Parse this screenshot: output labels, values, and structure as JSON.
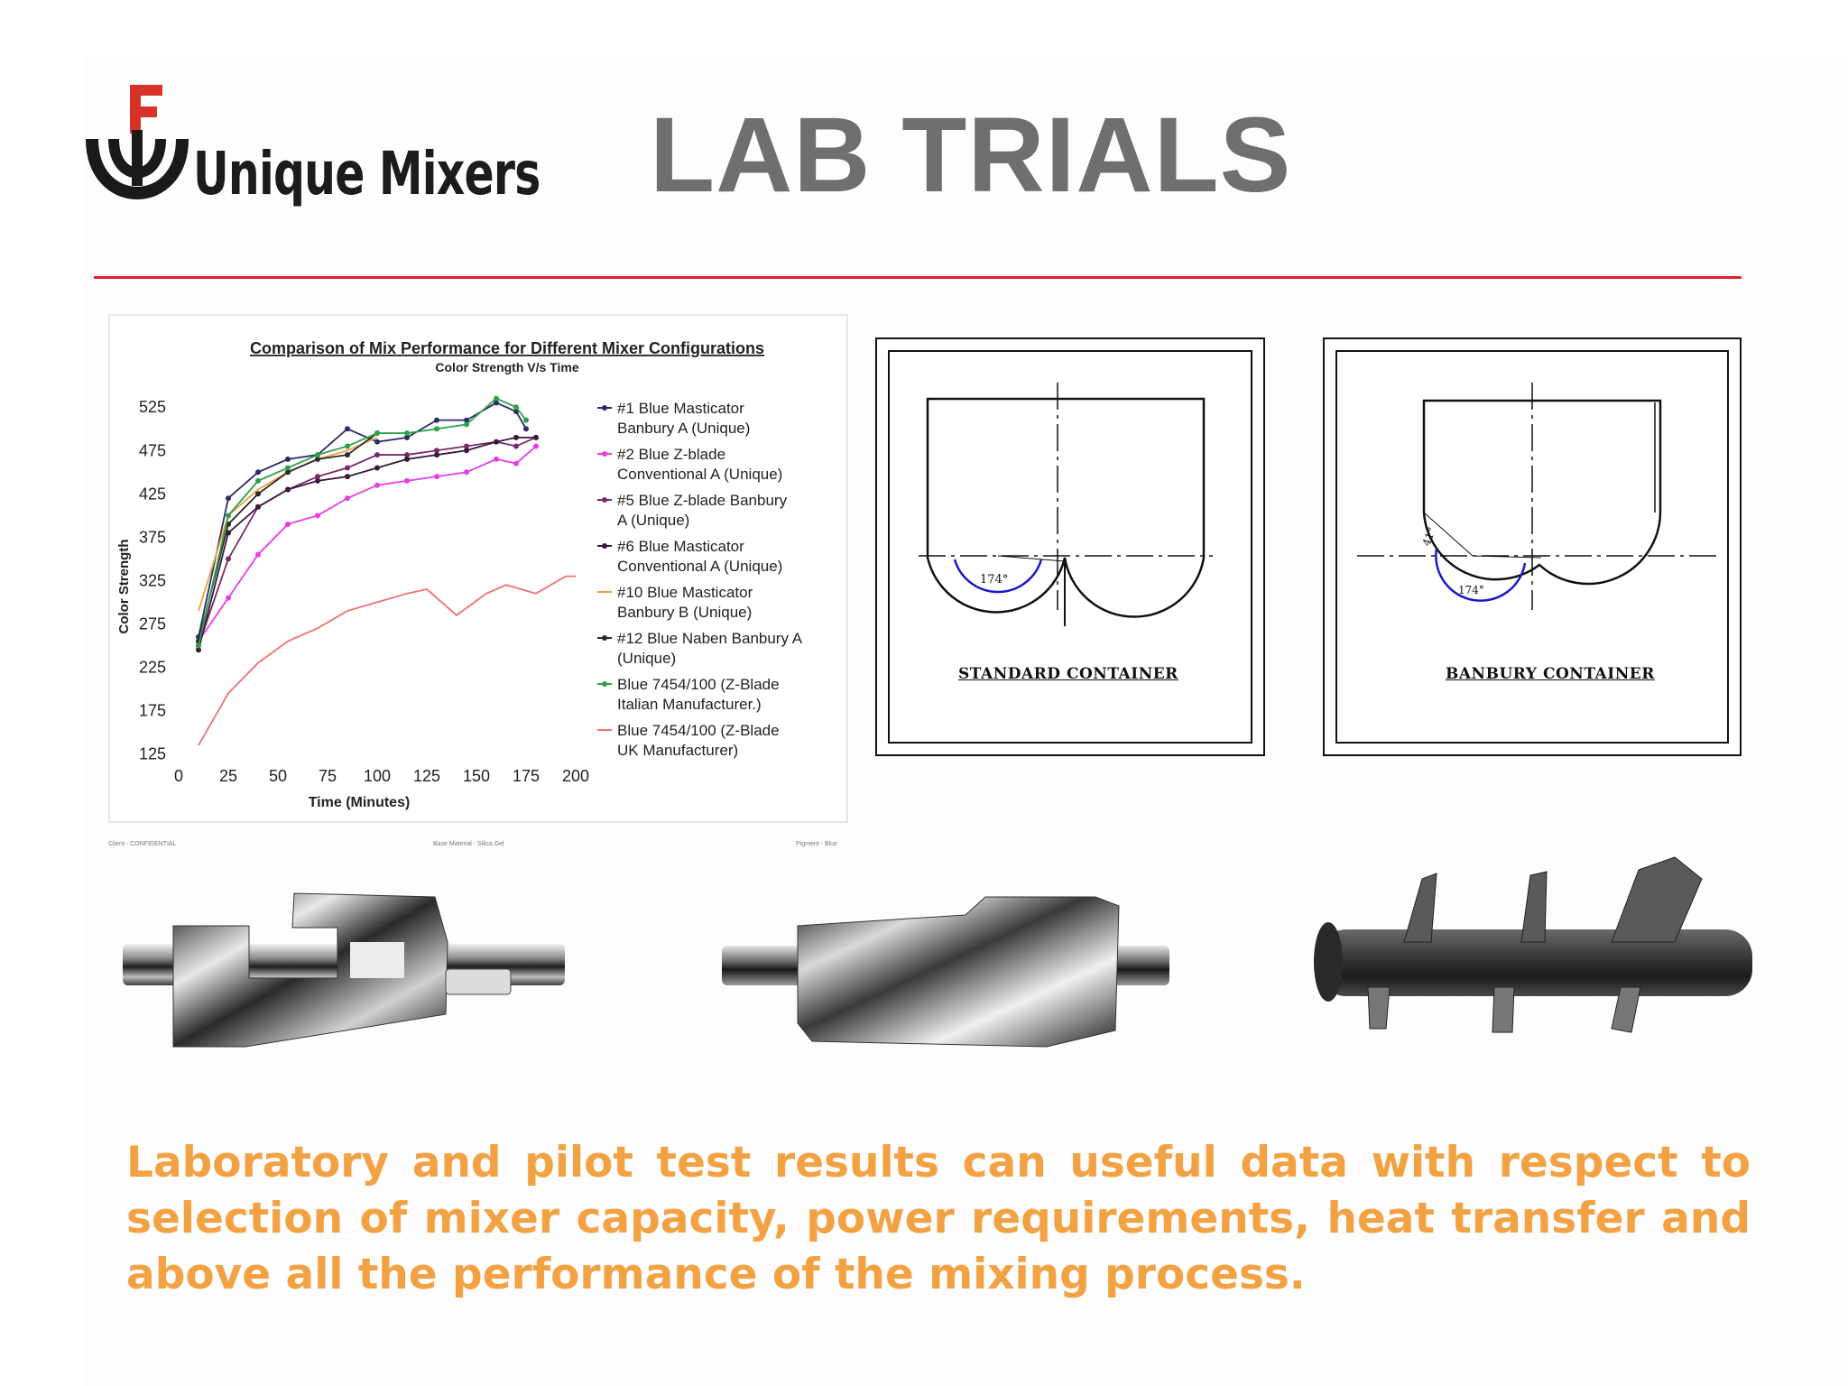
{
  "brand": {
    "name": "Unique Mixers"
  },
  "slide": {
    "title": "LAB TRIALS",
    "body": "Laboratory and pilot test results can useful data with respect to selection of mixer capacity, power requirements, heat transfer and above all the performance of the mixing process."
  },
  "colors": {
    "title": "#6f6f6f",
    "rule": "#e0212b",
    "body_text": "#f3a243"
  },
  "containers": [
    {
      "caption": "STANDARD  CONTAINER",
      "angle_label": "174°"
    },
    {
      "caption": "BANBURY  CONTAINER",
      "angle_labels": [
        "174°",
        "41°"
      ]
    }
  ],
  "chart_footer": {
    "left": "Client - CONFIDENTIAL",
    "center": "Base Material - Silica Gel",
    "right": "Pigment - Blue"
  },
  "blades": [
    {
      "icon": "sigma-z-blade-icon"
    },
    {
      "icon": "masticator-blade-icon"
    },
    {
      "icon": "naben-spiral-blade-icon"
    }
  ],
  "chart_data": {
    "type": "line",
    "title": "Comparison of Mix Performance for Different Mixer Configurations",
    "subtitle": "Color Strength V/s Time",
    "xlabel": "Time (Minutes)",
    "ylabel": "Color Strength",
    "xlim": [
      0,
      200
    ],
    "ylim": [
      110,
      545
    ],
    "x_ticks": [
      "0",
      "25",
      "50",
      "75",
      "100",
      "125",
      "150",
      "175",
      "200"
    ],
    "y_ticks": [
      "525",
      "475",
      "425",
      "375",
      "325",
      "275",
      "225",
      "175",
      "125"
    ],
    "x_tick_values": [
      0,
      25,
      50,
      75,
      100,
      125,
      150,
      175,
      200
    ],
    "y_tick_values": [
      525,
      475,
      425,
      375,
      325,
      275,
      225,
      175,
      125
    ],
    "legend_position": "right",
    "grid": false,
    "series": [
      {
        "name": "#1 Blue Masticator Banbury A (Unique)",
        "color": "#2b2b6b",
        "marker": "diamond",
        "points": [
          [
            10,
            260
          ],
          [
            25,
            420
          ],
          [
            40,
            450
          ],
          [
            55,
            465
          ],
          [
            70,
            470
          ],
          [
            85,
            500
          ],
          [
            100,
            485
          ],
          [
            115,
            490
          ],
          [
            130,
            510
          ],
          [
            145,
            510
          ],
          [
            160,
            530
          ],
          [
            170,
            520
          ],
          [
            175,
            500
          ]
        ]
      },
      {
        "name": "#2 Blue Z-blade Conventional A (Unique)",
        "color": "#e63ce6",
        "marker": "square",
        "points": [
          [
            10,
            255
          ],
          [
            25,
            305
          ],
          [
            40,
            355
          ],
          [
            55,
            390
          ],
          [
            70,
            400
          ],
          [
            85,
            420
          ],
          [
            100,
            435
          ],
          [
            115,
            440
          ],
          [
            130,
            445
          ],
          [
            145,
            450
          ],
          [
            160,
            465
          ],
          [
            170,
            460
          ],
          [
            180,
            480
          ]
        ]
      },
      {
        "name": "#5 Blue Z-blade Banbury A (Unique)",
        "color": "#7a2a6a",
        "marker": "triangle",
        "points": [
          [
            10,
            250
          ],
          [
            25,
            350
          ],
          [
            40,
            410
          ],
          [
            55,
            430
          ],
          [
            70,
            445
          ],
          [
            85,
            455
          ],
          [
            100,
            470
          ],
          [
            115,
            470
          ],
          [
            130,
            475
          ],
          [
            145,
            480
          ],
          [
            160,
            485
          ],
          [
            170,
            480
          ],
          [
            180,
            490
          ]
        ]
      },
      {
        "name": "#6 Blue Masticator Conventional A (Unique)",
        "color": "#3a1a3a",
        "marker": "x",
        "points": [
          [
            10,
            245
          ],
          [
            25,
            380
          ],
          [
            40,
            410
          ],
          [
            55,
            430
          ],
          [
            70,
            440
          ],
          [
            85,
            445
          ],
          [
            100,
            455
          ],
          [
            115,
            465
          ],
          [
            130,
            470
          ],
          [
            145,
            475
          ],
          [
            160,
            485
          ],
          [
            170,
            490
          ],
          [
            180,
            490
          ]
        ]
      },
      {
        "name": "#10 Blue Masticator Banbury B (Unique)",
        "color": "#f0a040",
        "marker": "none",
        "points": [
          [
            10,
            290
          ],
          [
            25,
            400
          ],
          [
            40,
            430
          ],
          [
            55,
            450
          ],
          [
            70,
            465
          ],
          [
            85,
            475
          ],
          [
            100,
            490
          ]
        ]
      },
      {
        "name": "#12 Blue Naben Banbury A (Unique)",
        "color": "#2a2a2a",
        "marker": "x",
        "points": [
          [
            10,
            255
          ],
          [
            25,
            390
          ],
          [
            40,
            425
          ],
          [
            55,
            450
          ],
          [
            70,
            465
          ],
          [
            85,
            470
          ],
          [
            100,
            495
          ]
        ]
      },
      {
        "name": "Blue 7454/100 (Z-Blade Italian Manufacturer.)",
        "color": "#2ea04a",
        "marker": "diamond",
        "points": [
          [
            10,
            250
          ],
          [
            25,
            400
          ],
          [
            40,
            440
          ],
          [
            55,
            455
          ],
          [
            70,
            470
          ],
          [
            85,
            480
          ],
          [
            100,
            495
          ],
          [
            115,
            495
          ],
          [
            130,
            500
          ],
          [
            145,
            505
          ],
          [
            160,
            535
          ],
          [
            170,
            525
          ],
          [
            175,
            510
          ]
        ]
      },
      {
        "name": "Blue 7454/100 (Z-Blade UK Manufacturer)",
        "color": "#f07070",
        "marker": "none",
        "points": [
          [
            10,
            135
          ],
          [
            25,
            195
          ],
          [
            40,
            230
          ],
          [
            55,
            255
          ],
          [
            70,
            270
          ],
          [
            85,
            290
          ],
          [
            100,
            300
          ],
          [
            115,
            310
          ],
          [
            125,
            315
          ],
          [
            140,
            285
          ],
          [
            155,
            310
          ],
          [
            165,
            320
          ],
          [
            180,
            310
          ],
          [
            195,
            330
          ],
          [
            200,
            330
          ]
        ]
      }
    ]
  }
}
